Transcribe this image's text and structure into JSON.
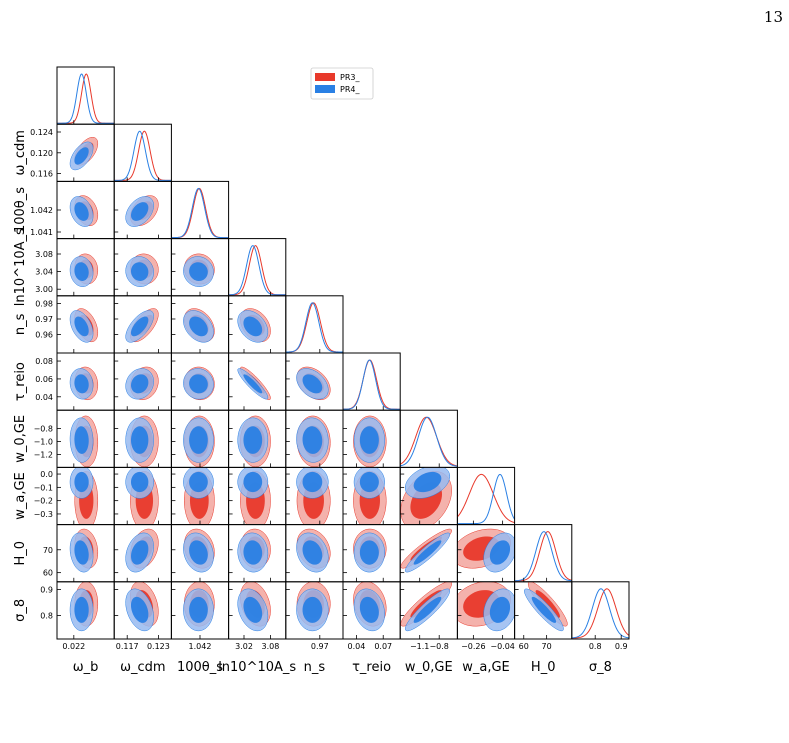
{
  "page": {
    "number": "13"
  },
  "chart_data": {
    "type": "corner",
    "legend": {
      "placement": "top-center",
      "entries": [
        {
          "name": "PR3_",
          "color": "#e8392b"
        },
        {
          "name": "PR4_",
          "color": "#2a80e4"
        }
      ]
    },
    "colors": {
      "PR3_": "#e8392b",
      "PR4_": "#2a80e4"
    },
    "parameters": [
      {
        "key": "omega_b",
        "label": "ω_b",
        "range": [
          0.0215,
          0.0232
        ],
        "ticks": [
          {
            "v": 0.022,
            "label": "0.022"
          }
        ],
        "pr3": {
          "mean": 0.02237,
          "sd": 0.00014
        },
        "pr4": {
          "mean": 0.02223,
          "sd": 0.00014
        }
      },
      {
        "key": "omega_cdm",
        "label": "ω_cdm",
        "range": [
          0.1145,
          0.1255
        ],
        "ticks": [
          {
            "v": 0.117,
            "label": "0.117"
          },
          {
            "v": 0.123,
            "label": "0.123"
          }
        ],
        "pr3": {
          "mean": 0.1203,
          "sd": 0.0011
        },
        "pr4": {
          "mean": 0.1194,
          "sd": 0.0011
        }
      },
      {
        "key": "theta_s",
        "label": "100θ_s",
        "range": [
          1.0407,
          1.0433
        ],
        "ticks": [
          {
            "v": 1.042,
            "label": "1.042"
          }
        ],
        "pr3": {
          "mean": 1.04197,
          "sd": 0.00028
        },
        "pr4": {
          "mean": 1.04193,
          "sd": 0.00028
        }
      },
      {
        "key": "ln10As",
        "label": "ln10^10A_s",
        "range": [
          2.985,
          3.115
        ],
        "ticks": [
          {
            "v": 3.02,
            "label": "3.02"
          },
          {
            "v": 3.08,
            "label": "3.08"
          }
        ],
        "pr3": {
          "mean": 3.046,
          "sd": 0.014
        },
        "pr4": {
          "mean": 3.04,
          "sd": 0.014
        }
      },
      {
        "key": "n_s",
        "label": "n_s",
        "range": [
          0.948,
          0.985
        ],
        "ticks": [
          {
            "v": 0.97,
            "label": "0.97"
          }
        ],
        "pr3": {
          "mean": 0.966,
          "sd": 0.0044
        },
        "pr4": {
          "mean": 0.9652,
          "sd": 0.0042
        }
      },
      {
        "key": "tau_reio",
        "label": "τ_reio",
        "range": [
          0.025,
          0.089
        ],
        "ticks": [
          {
            "v": 0.04,
            "label": "0.04"
          },
          {
            "v": 0.07,
            "label": "0.07"
          }
        ],
        "pr3": {
          "mean": 0.055,
          "sd": 0.0075
        },
        "pr4": {
          "mean": 0.0545,
          "sd": 0.007
        }
      },
      {
        "key": "w0_GE",
        "label": "w_0,GE",
        "range": [
          -1.4,
          -0.52
        ],
        "ticks": [
          {
            "v": -1.1,
            "label": "−1.1"
          },
          {
            "v": -0.8,
            "label": "−0.8"
          }
        ],
        "pr3": {
          "mean": -1.0,
          "sd": 0.16
        },
        "pr4": {
          "mean": -0.98,
          "sd": 0.14
        }
      },
      {
        "key": "wa_GE",
        "label": "w_a,GE",
        "range": [
          -0.38,
          0.05
        ],
        "ticks": [
          {
            "v": -0.26,
            "label": "−0.26"
          },
          {
            "v": -0.04,
            "label": "−0.04"
          }
        ],
        "pr3": {
          "mean": -0.2,
          "sd": 0.09
        },
        "pr4": {
          "mean": -0.06,
          "sd": 0.05
        }
      },
      {
        "key": "H0",
        "label": "H_0",
        "range": [
          56,
          81
        ],
        "ticks": [
          {
            "v": 60,
            "label": "60"
          },
          {
            "v": 70,
            "label": "70"
          }
        ],
        "pr3": {
          "mean": 70.5,
          "sd": 3.5
        },
        "pr4": {
          "mean": 68.8,
          "sd": 3.5
        }
      },
      {
        "key": "sigma8",
        "label": "σ_8",
        "range": [
          0.71,
          0.93
        ],
        "ticks": [
          {
            "v": 0.8,
            "label": "0.8"
          },
          {
            "v": 0.9,
            "label": "0.9"
          }
        ],
        "pr3": {
          "mean": 0.845,
          "sd": 0.035
        },
        "pr4": {
          "mean": 0.822,
          "sd": 0.033
        }
      }
    ],
    "y_axis_ticks": [
      null,
      [
        {
          "v": 0.124,
          "label": "0.124"
        },
        {
          "v": 0.12,
          "label": "0.120"
        },
        {
          "v": 0.116,
          "label": "0.116"
        }
      ],
      [
        {
          "v": 1.042,
          "label": "1.042"
        },
        {
          "v": 1.041,
          "label": "1.041"
        }
      ],
      [
        {
          "v": 3.08,
          "label": "3.08"
        },
        {
          "v": 3.04,
          "label": "3.04"
        },
        {
          "v": 3.0,
          "label": "3.00"
        }
      ],
      [
        {
          "v": 0.98,
          "label": "0.98"
        },
        {
          "v": 0.97,
          "label": "0.97"
        },
        {
          "v": 0.96,
          "label": "0.96"
        }
      ],
      [
        {
          "v": 0.08,
          "label": "0.08"
        },
        {
          "v": 0.06,
          "label": "0.06"
        },
        {
          "v": 0.04,
          "label": "0.04"
        }
      ],
      [
        {
          "v": -0.8,
          "label": "−0.8"
        },
        {
          "v": -1.0,
          "label": "−1.0"
        },
        {
          "v": -1.2,
          "label": "−1.2"
        }
      ],
      [
        {
          "v": 0.0,
          "label": "0.0"
        },
        {
          "v": -0.1,
          "label": "−0.1"
        },
        {
          "v": -0.2,
          "label": "−0.2"
        },
        {
          "v": -0.3,
          "label": "−0.3"
        }
      ],
      [
        {
          "v": 70,
          "label": "70"
        },
        {
          "v": 60,
          "label": "60"
        }
      ],
      [
        {
          "v": 0.9,
          "label": "0.9"
        },
        {
          "v": 0.8,
          "label": "0.8"
        }
      ]
    ],
    "correlations": {
      "1_0": -0.55,
      "2_0": 0.3,
      "2_1": -0.4,
      "3_0": 0.1,
      "3_1": 0.05,
      "3_2": 0.05,
      "4_0": 0.45,
      "4_1": -0.65,
      "4_2": 0.35,
      "4_3": 0.35,
      "5_0": 0.1,
      "5_1": -0.15,
      "5_2": 0.05,
      "5_3": 0.9,
      "5_4": 0.4,
      "6_0": 0.05,
      "6_1": 0.0,
      "6_2": 0.0,
      "6_3": 0.0,
      "6_4": 0.05,
      "6_5": 0.0,
      "7_0": 0.0,
      "7_1": 0.0,
      "7_2": 0.0,
      "7_3": 0.0,
      "7_4": 0.0,
      "7_5": 0.0,
      "7_6": -0.35,
      "8_0": 0.2,
      "8_1": -0.3,
      "8_2": 0.2,
      "8_3": 0.05,
      "8_4": 0.25,
      "8_5": 0.0,
      "8_6": -0.92,
      "8_7": -0.3,
      "9_0": 0.0,
      "9_1": 0.35,
      "9_2": 0.0,
      "9_3": 0.3,
      "9_4": 0.0,
      "9_5": 0.2,
      "9_6": -0.9,
      "9_7": -0.2,
      "9_8": 0.9
    },
    "contour_levels": [
      "68%",
      "95%"
    ]
  }
}
